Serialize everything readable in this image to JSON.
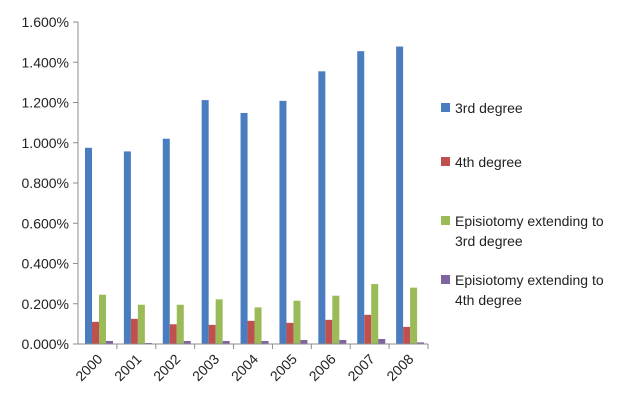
{
  "chart_data": {
    "type": "bar",
    "categories": [
      "2000",
      "2001",
      "2002",
      "2003",
      "2004",
      "2005",
      "2006",
      "2007",
      "2008"
    ],
    "series": [
      {
        "name": "3rd degree",
        "color": "#4A7DC0",
        "values": [
          0.975,
          0.957,
          1.02,
          1.212,
          1.148,
          1.208,
          1.355,
          1.455,
          1.478
        ]
      },
      {
        "name": "4th degree",
        "color": "#C0504D",
        "values": [
          0.11,
          0.125,
          0.098,
          0.095,
          0.115,
          0.105,
          0.12,
          0.145,
          0.085
        ]
      },
      {
        "name_lines": [
          "Episiotomy extending to",
          "3rd degree"
        ],
        "color": "#9BBB59",
        "values": [
          0.245,
          0.195,
          0.195,
          0.222,
          0.182,
          0.215,
          0.24,
          0.298,
          0.28
        ]
      },
      {
        "name_lines": [
          "Episiotomy extending to",
          "4th degree"
        ],
        "color": "#8064A2",
        "values": [
          0.015,
          0.005,
          0.015,
          0.015,
          0.015,
          0.02,
          0.02,
          0.025,
          0.008
        ]
      }
    ],
    "ylim": [
      0,
      1.6
    ],
    "yticks": [
      "0.000%",
      "0.200%",
      "0.400%",
      "0.600%",
      "0.800%",
      "1.000%",
      "1.200%",
      "1.400%",
      "1.600%"
    ],
    "grid": false,
    "legend_position": "right"
  }
}
